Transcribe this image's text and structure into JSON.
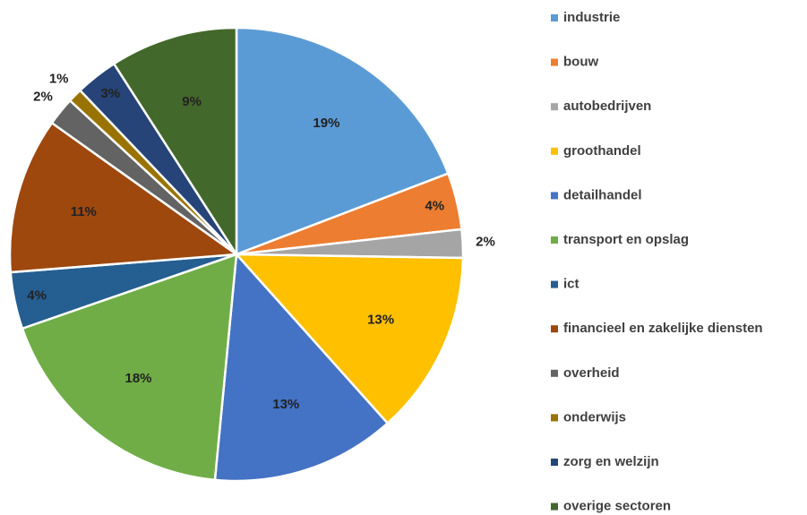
{
  "chart_data": {
    "type": "pie",
    "categories": [
      "industrie",
      "bouw",
      "autobedrijven",
      "groothandel",
      "detailhandel",
      "transport en opslag",
      "ict",
      "financieel en zakelijke diensten",
      "overheid",
      "onderwijs",
      "zorg en welzijn",
      "overige sectoren"
    ],
    "values": [
      19,
      4,
      2,
      13,
      13,
      18,
      4,
      11,
      2,
      1,
      3,
      9
    ],
    "value_labels": [
      "19%",
      "4%",
      "2%",
      "13%",
      "13%",
      "18%",
      "4%",
      "11%",
      "2%",
      "1%",
      "3%",
      "9%"
    ],
    "colors": [
      "#5b9bd5",
      "#ed7d31",
      "#a5a5a5",
      "#ffc000",
      "#4472c4",
      "#70ad47",
      "#255e91",
      "#9e480e",
      "#636363",
      "#997300",
      "#264478",
      "#43682b"
    ],
    "legend": "right"
  }
}
